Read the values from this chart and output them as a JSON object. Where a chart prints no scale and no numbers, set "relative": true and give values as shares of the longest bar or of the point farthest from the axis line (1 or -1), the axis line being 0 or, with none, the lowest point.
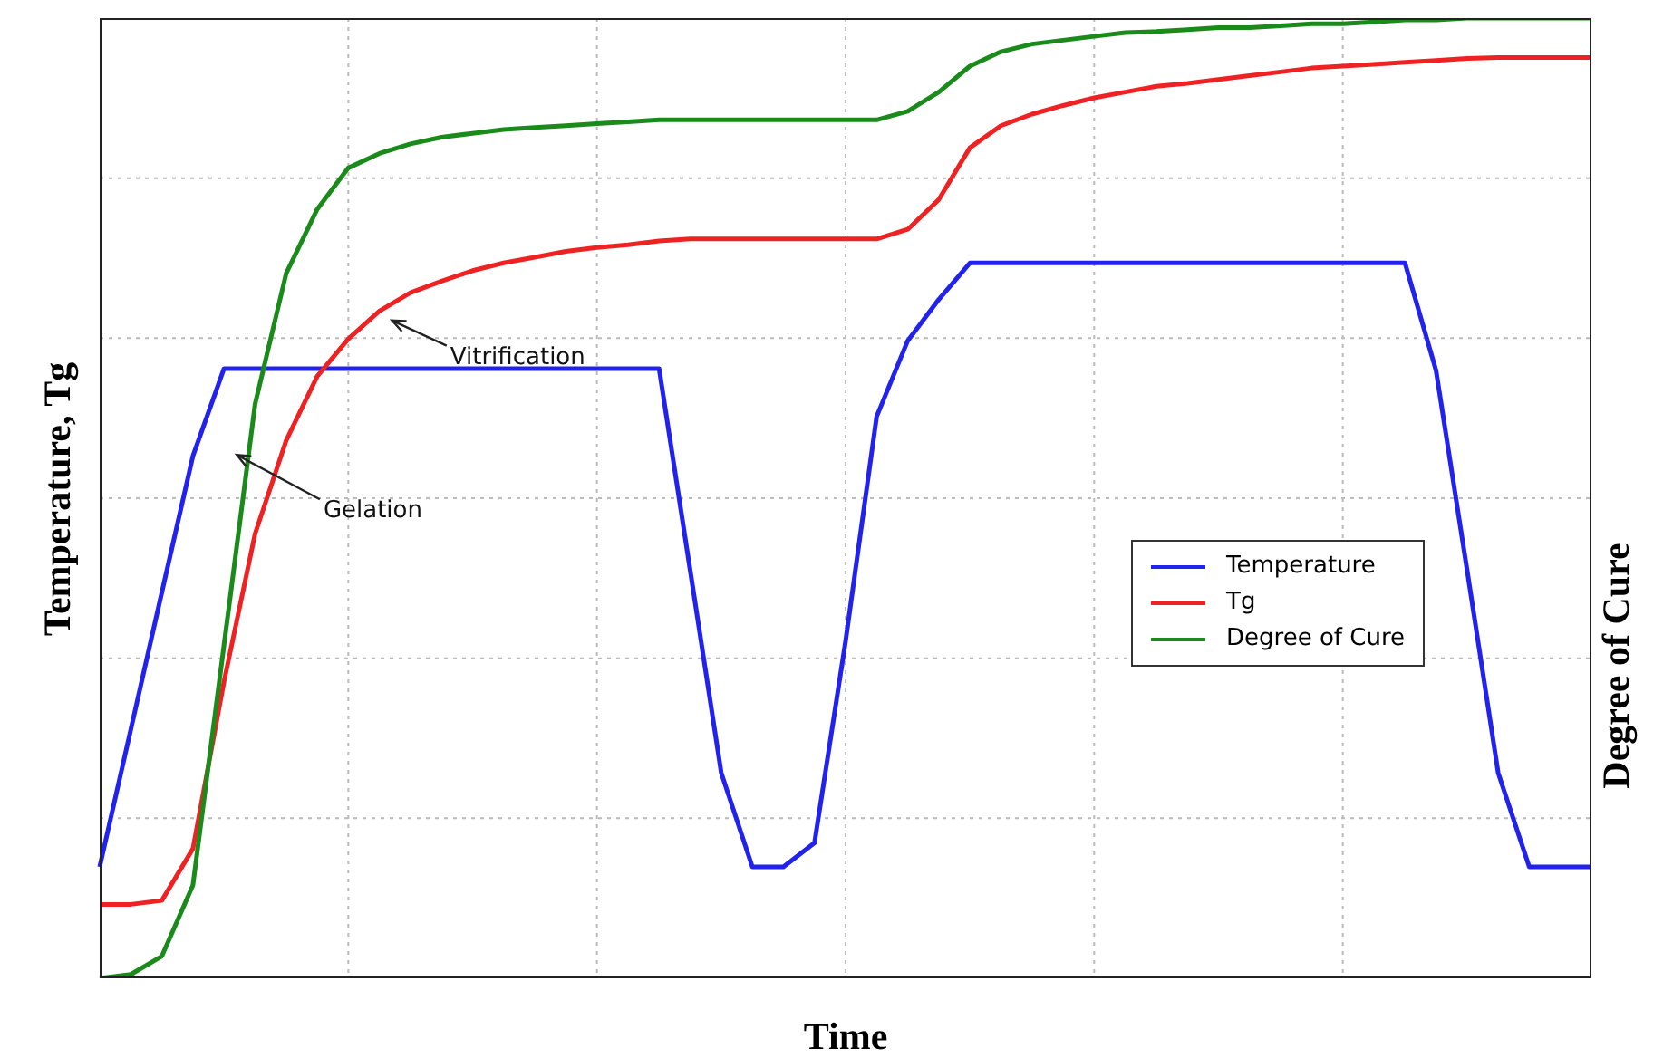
{
  "chart_data": {
    "type": "line",
    "relative": true,
    "xlabel": "Time",
    "ylabel": "Temperature, Tg",
    "y2label": "Degree of Cure",
    "grid": true,
    "legend": "right",
    "categories": [
      null,
      null,
      null,
      null,
      null,
      null,
      null,
      null,
      null,
      null,
      null,
      null,
      null,
      null,
      null,
      null,
      null,
      null,
      null,
      null,
      null,
      null,
      null,
      null,
      null,
      null,
      null,
      null,
      null,
      null,
      null,
      null,
      null,
      null,
      null,
      null,
      null,
      null,
      null,
      null,
      null,
      null,
      null,
      null,
      null,
      null,
      null,
      null,
      null
    ],
    "annotations": [
      "Vitrification",
      "Gelation"
    ],
    "series": [
      {
        "name": "Temperature",
        "color": "#2222ee",
        "values": [
          0.116,
          0.259,
          0.402,
          0.544,
          0.635,
          0.635,
          0.635,
          0.635,
          0.635,
          0.635,
          0.635,
          0.635,
          0.635,
          0.635,
          0.635,
          0.635,
          0.635,
          0.635,
          0.635,
          0.425,
          0.214,
          0.116,
          0.116,
          0.141,
          0.351,
          0.585,
          0.664,
          0.707,
          0.745,
          0.745,
          0.745,
          0.745,
          0.745,
          0.745,
          0.745,
          0.745,
          0.745,
          0.745,
          0.745,
          0.745,
          0.745,
          0.745,
          0.745,
          0.633,
          0.425,
          0.214,
          0.116,
          0.116,
          0.116
        ]
      },
      {
        "name": "Tg",
        "color": "#ee2222",
        "values": [
          0.077,
          0.077,
          0.081,
          0.135,
          0.309,
          0.463,
          0.56,
          0.627,
          0.666,
          0.695,
          0.714,
          0.726,
          0.737,
          0.745,
          0.751,
          0.757,
          0.761,
          0.764,
          0.768,
          0.77,
          0.77,
          0.77,
          0.77,
          0.77,
          0.77,
          0.77,
          0.78,
          0.811,
          0.865,
          0.888,
          0.9,
          0.909,
          0.917,
          0.923,
          0.929,
          0.932,
          0.936,
          0.94,
          0.944,
          0.948,
          0.95,
          0.952,
          0.954,
          0.956,
          0.958,
          0.959,
          0.959,
          0.959,
          0.959
        ]
      },
      {
        "name": "Degree of Cure",
        "color": "#1a8a1a",
        "values": [
          0,
          0.004,
          0.023,
          0.097,
          0.347,
          0.598,
          0.734,
          0.801,
          0.844,
          0.859,
          0.869,
          0.876,
          0.88,
          0.884,
          0.886,
          0.888,
          0.89,
          0.892,
          0.894,
          0.894,
          0.894,
          0.894,
          0.894,
          0.894,
          0.894,
          0.894,
          0.903,
          0.923,
          0.95,
          0.965,
          0.973,
          0.977,
          0.981,
          0.985,
          0.986,
          0.988,
          0.99,
          0.99,
          0.992,
          0.994,
          0.994,
          0.996,
          0.998,
          0.998,
          1,
          1,
          1,
          1,
          1
        ]
      }
    ]
  }
}
